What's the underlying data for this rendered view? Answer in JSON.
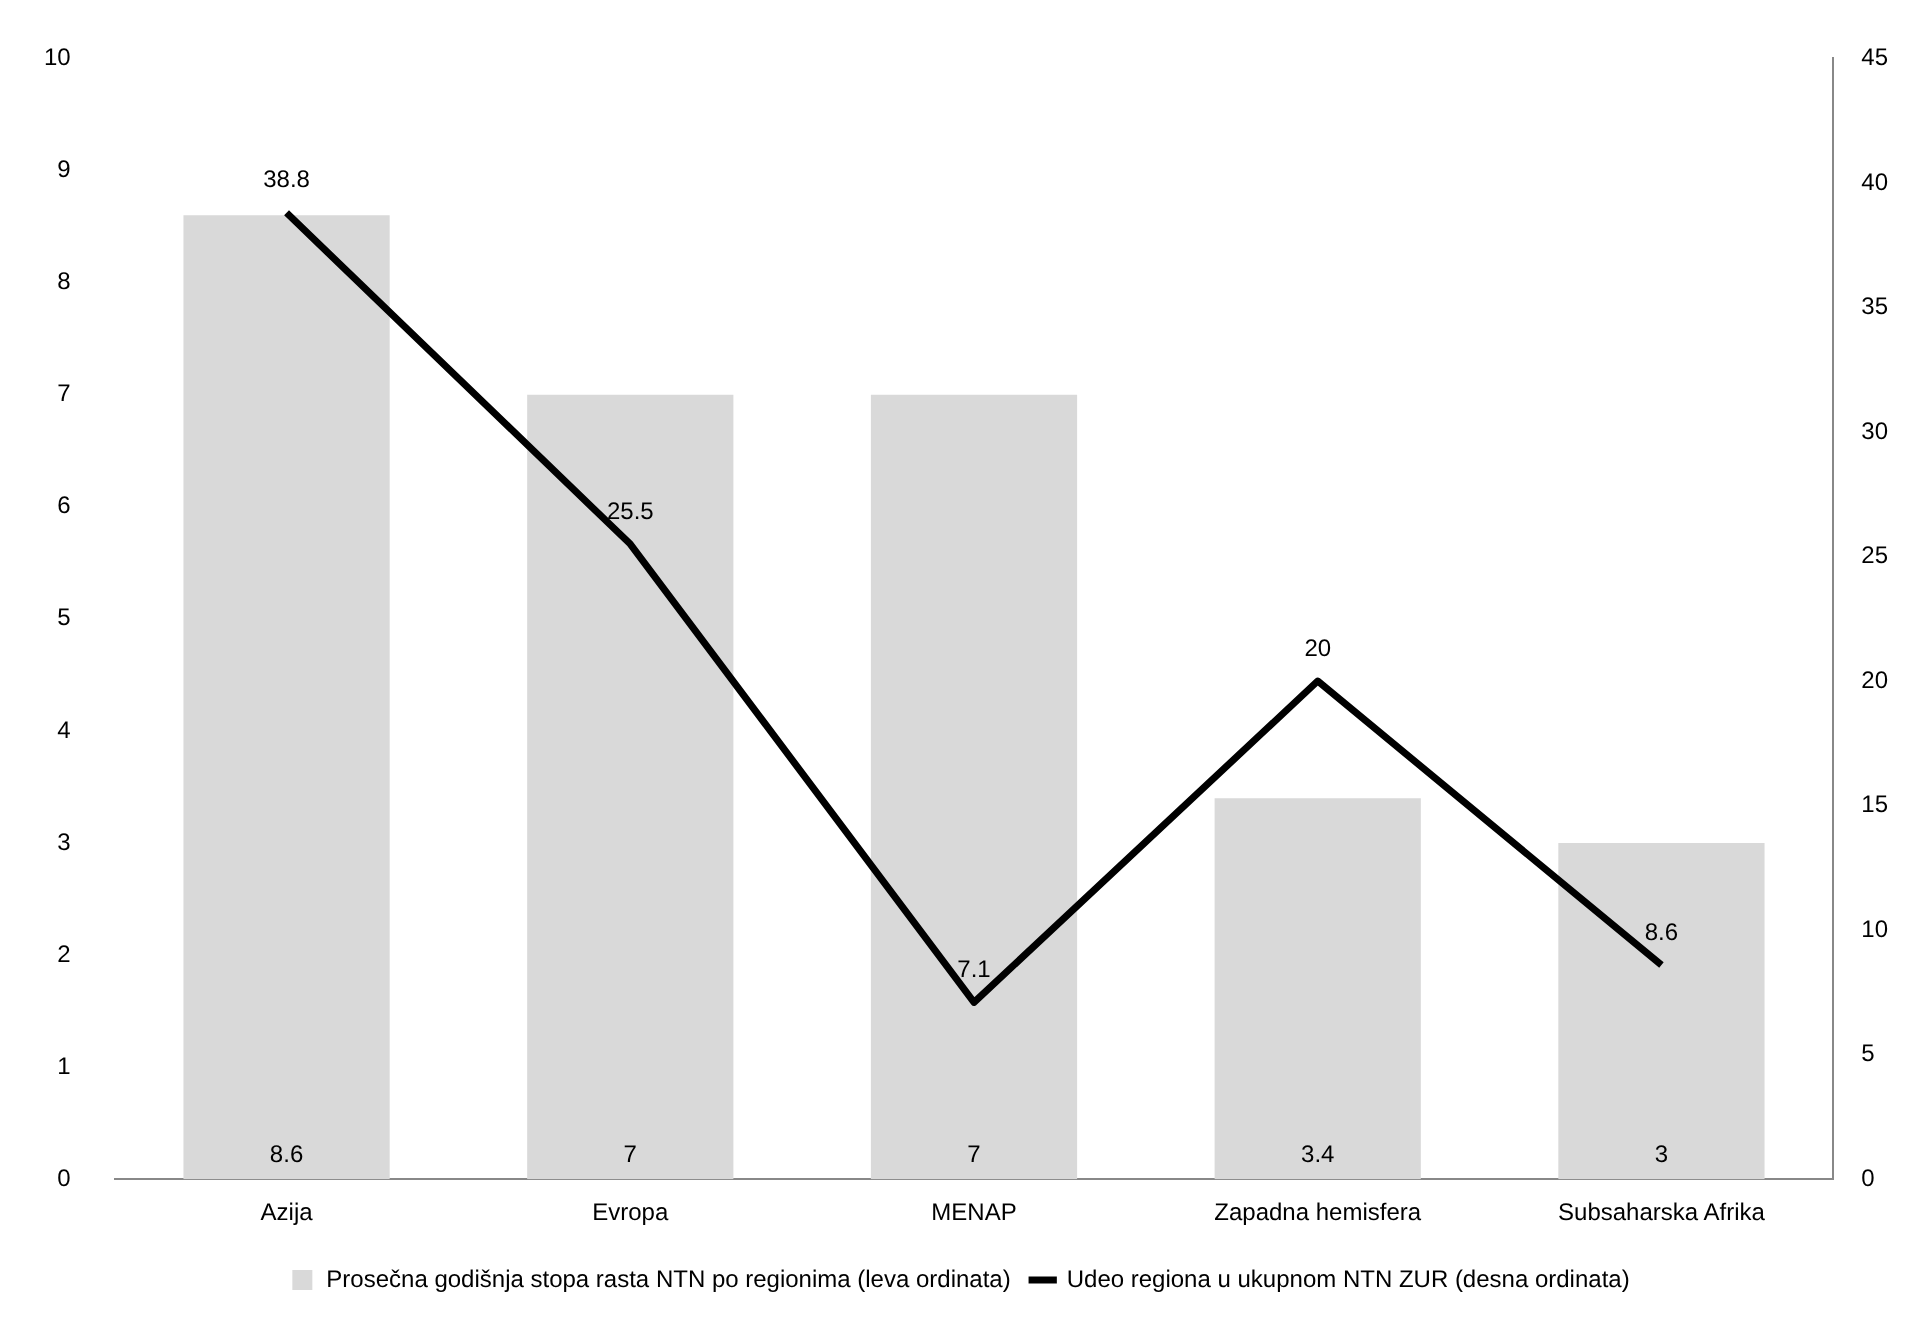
{
  "chart_data": {
    "type": "bar",
    "categories": [
      "Azija",
      "Evropa",
      "MENAP",
      "Zapadna hemisfera",
      "Subsaharska Afrika"
    ],
    "series": [
      {
        "name": "Prosečna godišnja stopa rasta NTN po regionima (leva ordinata)",
        "color": "#d9d9d9",
        "values": [
          8.6,
          7,
          7,
          3.4,
          3
        ]
      },
      {
        "name": "Udeo regiona u ukupnom NTN ZUR (desna ordinata)",
        "type": "line",
        "axis": "y2",
        "color": "#000000",
        "values": [
          38.8,
          25.5,
          7.1,
          20,
          8.6
        ]
      }
    ],
    "ylim": [
      0,
      10
    ],
    "yticks": [
      0,
      1,
      2,
      3,
      4,
      5,
      6,
      7,
      8,
      9,
      10
    ],
    "y2lim": [
      0,
      45
    ],
    "y2ticks": [
      0,
      5,
      10,
      15,
      20,
      25,
      30,
      35,
      40,
      45
    ],
    "grid": false,
    "legend": "bottom",
    "data_labels": true,
    "marker": "none",
    "line_style": "solid"
  }
}
